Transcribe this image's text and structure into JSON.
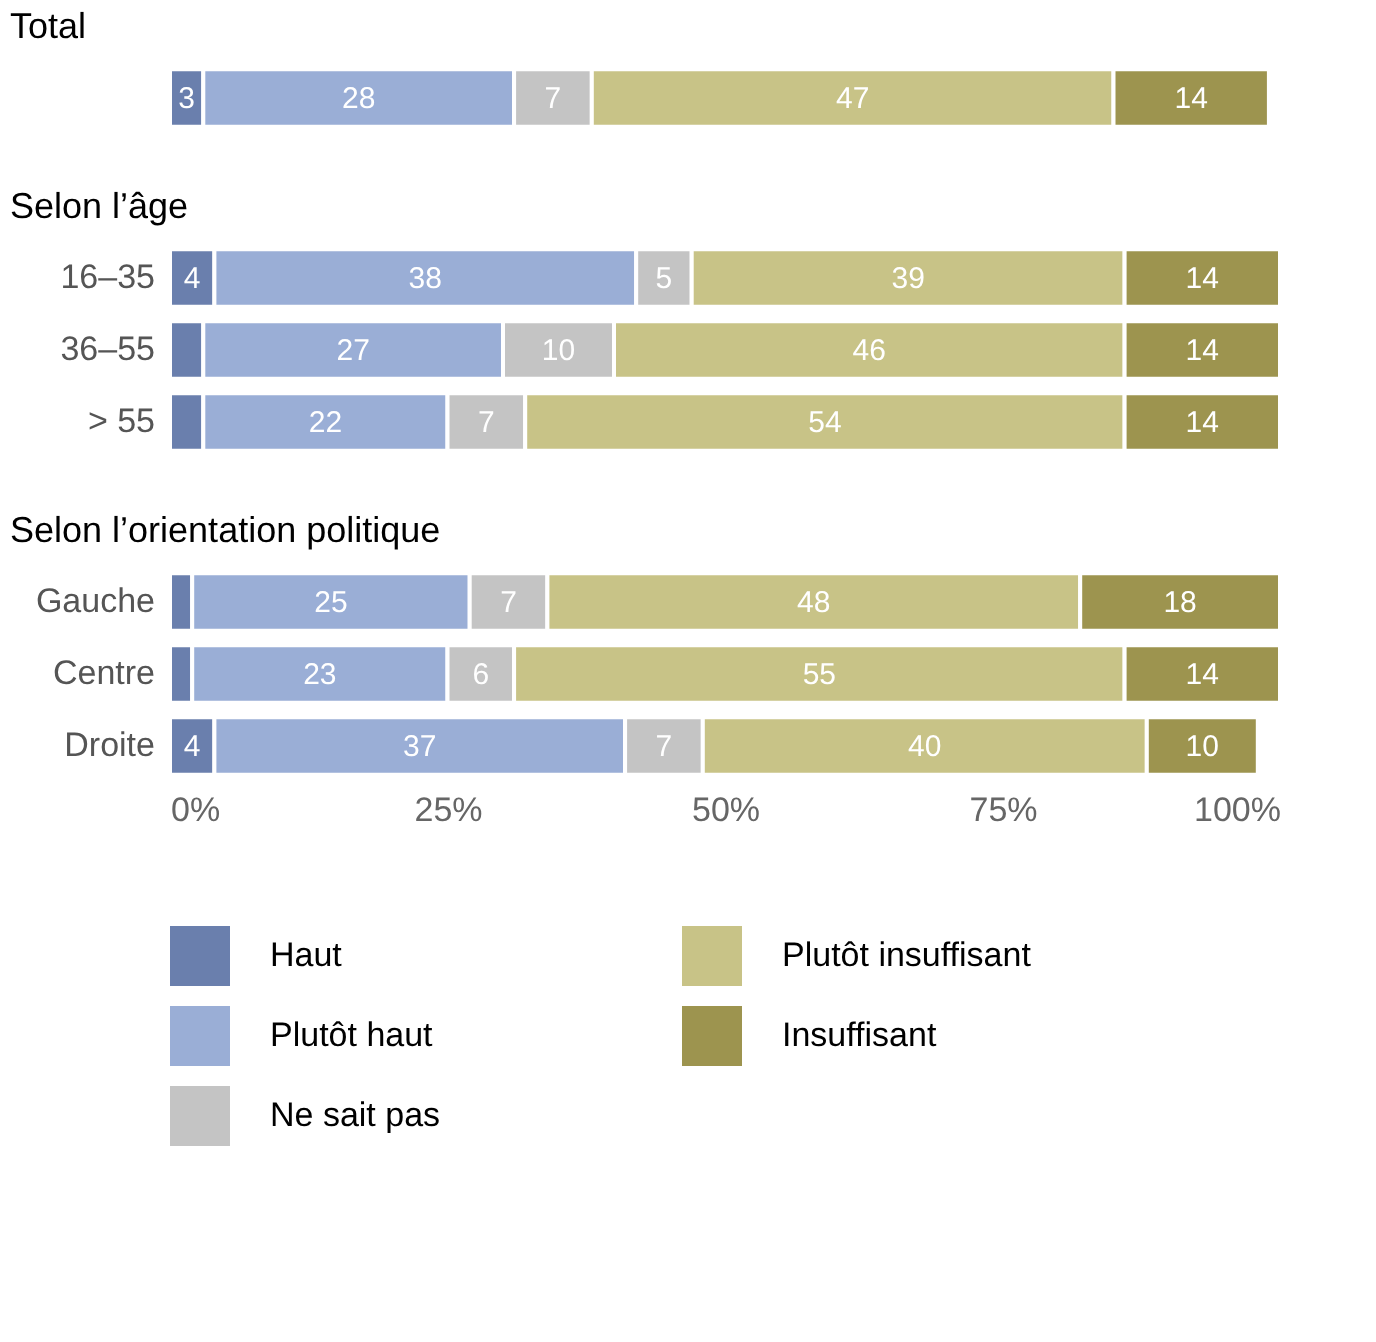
{
  "chart_data": [
    {
      "type": "bar",
      "orientation": "horizontal",
      "stacked": true,
      "title": "Total",
      "categories": [
        null
      ],
      "xlim": [
        0,
        100
      ],
      "tick_labels": false,
      "series": [
        {
          "color": "#6a7fad",
          "values": [
            3
          ],
          "value_labels": [
            "3"
          ]
        },
        {
          "color": "#9aaed6",
          "values": [
            28
          ],
          "value_labels": [
            "28"
          ]
        },
        {
          "color": "#c4c4c4",
          "values": [
            7
          ],
          "value_labels": [
            "7"
          ]
        },
        {
          "color": "#c8c387",
          "values": [
            47
          ],
          "value_labels": [
            "47"
          ]
        },
        {
          "color": "#9d944f",
          "values": [
            14
          ],
          "value_labels": [
            "14"
          ]
        }
      ]
    },
    {
      "type": "bar",
      "orientation": "horizontal",
      "stacked": true,
      "title": "Selon l’âge",
      "categories": [
        "16–35",
        "36–55",
        "> 55"
      ],
      "xlim": [
        0,
        100
      ],
      "tick_labels": "y",
      "series": [
        {
          "color": "#6a7fad",
          "values": [
            4,
            3,
            3
          ],
          "value_labels": [
            "4",
            null,
            null
          ]
        },
        {
          "color": "#9aaed6",
          "values": [
            38,
            27,
            22
          ],
          "value_labels": [
            "38",
            "27",
            "22"
          ]
        },
        {
          "color": "#c4c4c4",
          "values": [
            5,
            10,
            7
          ],
          "value_labels": [
            "5",
            "10",
            "7"
          ]
        },
        {
          "color": "#c8c387",
          "values": [
            39,
            46,
            54
          ],
          "value_labels": [
            "39",
            "46",
            "54"
          ]
        },
        {
          "color": "#9d944f",
          "values": [
            14,
            14,
            14
          ],
          "value_labels": [
            "14",
            "14",
            "14"
          ]
        }
      ]
    },
    {
      "type": "bar",
      "orientation": "horizontal",
      "stacked": true,
      "title": "Selon l’orientation politique",
      "categories": [
        "Gauche",
        "Centre",
        "Droite"
      ],
      "xlim": [
        0,
        100
      ],
      "xticks": [
        {
          "value": 0,
          "label": "0%"
        },
        {
          "value": 25,
          "label": "25%"
        },
        {
          "value": 50,
          "label": "50%"
        },
        {
          "value": 75,
          "label": "75%"
        },
        {
          "value": 100,
          "label": "100%"
        }
      ],
      "legend": "bottom",
      "series": [
        {
          "name": "Haut",
          "color": "#6a7fad",
          "values": [
            2,
            2,
            4
          ],
          "value_labels": [
            null,
            null,
            "4"
          ]
        },
        {
          "name": "Plutôt haut",
          "color": "#9aaed6",
          "values": [
            25,
            23,
            37
          ],
          "value_labels": [
            "25",
            "23",
            "37"
          ]
        },
        {
          "name": "Ne sait pas",
          "color": "#c4c4c4",
          "values": [
            7,
            6,
            7
          ],
          "value_labels": [
            "7",
            "6",
            "7"
          ]
        },
        {
          "name": "Plutôt insuffisant",
          "color": "#c8c387",
          "values": [
            48,
            55,
            40
          ],
          "value_labels": [
            "48",
            "55",
            "40"
          ]
        },
        {
          "name": "Insuffisant",
          "color": "#9d944f",
          "values": [
            18,
            14,
            10
          ],
          "value_labels": [
            "18",
            "14",
            "10"
          ]
        }
      ]
    }
  ]
}
